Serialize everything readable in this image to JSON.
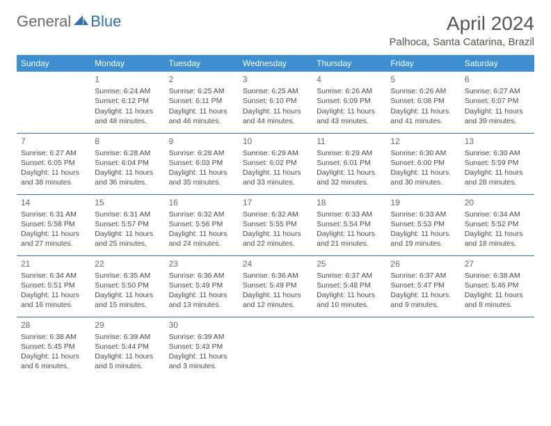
{
  "logo": {
    "part1": "General",
    "part2": "Blue"
  },
  "title": "April 2024",
  "location": "Palhoca, Santa Catarina, Brazil",
  "dayHeaders": [
    "Sunday",
    "Monday",
    "Tuesday",
    "Wednesday",
    "Thursday",
    "Friday",
    "Saturday"
  ],
  "colors": {
    "headerBg": "#3d8fd1",
    "headerFg": "#ffffff",
    "rule": "#2f6fb0",
    "logoGray": "#6a6a6a",
    "logoBlue": "#2f6fb0",
    "text": "#4a4a4a"
  },
  "weeks": [
    [
      {
        "num": "",
        "lines": []
      },
      {
        "num": "1",
        "lines": [
          "Sunrise: 6:24 AM",
          "Sunset: 6:12 PM",
          "Daylight: 11 hours and 48 minutes."
        ]
      },
      {
        "num": "2",
        "lines": [
          "Sunrise: 6:25 AM",
          "Sunset: 6:11 PM",
          "Daylight: 11 hours and 46 minutes."
        ]
      },
      {
        "num": "3",
        "lines": [
          "Sunrise: 6:25 AM",
          "Sunset: 6:10 PM",
          "Daylight: 11 hours and 44 minutes."
        ]
      },
      {
        "num": "4",
        "lines": [
          "Sunrise: 6:26 AM",
          "Sunset: 6:09 PM",
          "Daylight: 11 hours and 43 minutes."
        ]
      },
      {
        "num": "5",
        "lines": [
          "Sunrise: 6:26 AM",
          "Sunset: 6:08 PM",
          "Daylight: 11 hours and 41 minutes."
        ]
      },
      {
        "num": "6",
        "lines": [
          "Sunrise: 6:27 AM",
          "Sunset: 6:07 PM",
          "Daylight: 11 hours and 39 minutes."
        ]
      }
    ],
    [
      {
        "num": "7",
        "lines": [
          "Sunrise: 6:27 AM",
          "Sunset: 6:05 PM",
          "Daylight: 11 hours and 38 minutes."
        ]
      },
      {
        "num": "8",
        "lines": [
          "Sunrise: 6:28 AM",
          "Sunset: 6:04 PM",
          "Daylight: 11 hours and 36 minutes."
        ]
      },
      {
        "num": "9",
        "lines": [
          "Sunrise: 6:28 AM",
          "Sunset: 6:03 PM",
          "Daylight: 11 hours and 35 minutes."
        ]
      },
      {
        "num": "10",
        "lines": [
          "Sunrise: 6:29 AM",
          "Sunset: 6:02 PM",
          "Daylight: 11 hours and 33 minutes."
        ]
      },
      {
        "num": "11",
        "lines": [
          "Sunrise: 6:29 AM",
          "Sunset: 6:01 PM",
          "Daylight: 11 hours and 32 minutes."
        ]
      },
      {
        "num": "12",
        "lines": [
          "Sunrise: 6:30 AM",
          "Sunset: 6:00 PM",
          "Daylight: 11 hours and 30 minutes."
        ]
      },
      {
        "num": "13",
        "lines": [
          "Sunrise: 6:30 AM",
          "Sunset: 5:59 PM",
          "Daylight: 11 hours and 28 minutes."
        ]
      }
    ],
    [
      {
        "num": "14",
        "lines": [
          "Sunrise: 6:31 AM",
          "Sunset: 5:58 PM",
          "Daylight: 11 hours and 27 minutes."
        ]
      },
      {
        "num": "15",
        "lines": [
          "Sunrise: 6:31 AM",
          "Sunset: 5:57 PM",
          "Daylight: 11 hours and 25 minutes."
        ]
      },
      {
        "num": "16",
        "lines": [
          "Sunrise: 6:32 AM",
          "Sunset: 5:56 PM",
          "Daylight: 11 hours and 24 minutes."
        ]
      },
      {
        "num": "17",
        "lines": [
          "Sunrise: 6:32 AM",
          "Sunset: 5:55 PM",
          "Daylight: 11 hours and 22 minutes."
        ]
      },
      {
        "num": "18",
        "lines": [
          "Sunrise: 6:33 AM",
          "Sunset: 5:54 PM",
          "Daylight: 11 hours and 21 minutes."
        ]
      },
      {
        "num": "19",
        "lines": [
          "Sunrise: 6:33 AM",
          "Sunset: 5:53 PM",
          "Daylight: 11 hours and 19 minutes."
        ]
      },
      {
        "num": "20",
        "lines": [
          "Sunrise: 6:34 AM",
          "Sunset: 5:52 PM",
          "Daylight: 11 hours and 18 minutes."
        ]
      }
    ],
    [
      {
        "num": "21",
        "lines": [
          "Sunrise: 6:34 AM",
          "Sunset: 5:51 PM",
          "Daylight: 11 hours and 16 minutes."
        ]
      },
      {
        "num": "22",
        "lines": [
          "Sunrise: 6:35 AM",
          "Sunset: 5:50 PM",
          "Daylight: 11 hours and 15 minutes."
        ]
      },
      {
        "num": "23",
        "lines": [
          "Sunrise: 6:36 AM",
          "Sunset: 5:49 PM",
          "Daylight: 11 hours and 13 minutes."
        ]
      },
      {
        "num": "24",
        "lines": [
          "Sunrise: 6:36 AM",
          "Sunset: 5:49 PM",
          "Daylight: 11 hours and 12 minutes."
        ]
      },
      {
        "num": "25",
        "lines": [
          "Sunrise: 6:37 AM",
          "Sunset: 5:48 PM",
          "Daylight: 11 hours and 10 minutes."
        ]
      },
      {
        "num": "26",
        "lines": [
          "Sunrise: 6:37 AM",
          "Sunset: 5:47 PM",
          "Daylight: 11 hours and 9 minutes."
        ]
      },
      {
        "num": "27",
        "lines": [
          "Sunrise: 6:38 AM",
          "Sunset: 5:46 PM",
          "Daylight: 11 hours and 8 minutes."
        ]
      }
    ],
    [
      {
        "num": "28",
        "lines": [
          "Sunrise: 6:38 AM",
          "Sunset: 5:45 PM",
          "Daylight: 11 hours and 6 minutes."
        ]
      },
      {
        "num": "29",
        "lines": [
          "Sunrise: 6:39 AM",
          "Sunset: 5:44 PM",
          "Daylight: 11 hours and 5 minutes."
        ]
      },
      {
        "num": "30",
        "lines": [
          "Sunrise: 6:39 AM",
          "Sunset: 5:43 PM",
          "Daylight: 11 hours and 3 minutes."
        ]
      },
      {
        "num": "",
        "lines": []
      },
      {
        "num": "",
        "lines": []
      },
      {
        "num": "",
        "lines": []
      },
      {
        "num": "",
        "lines": []
      }
    ]
  ]
}
